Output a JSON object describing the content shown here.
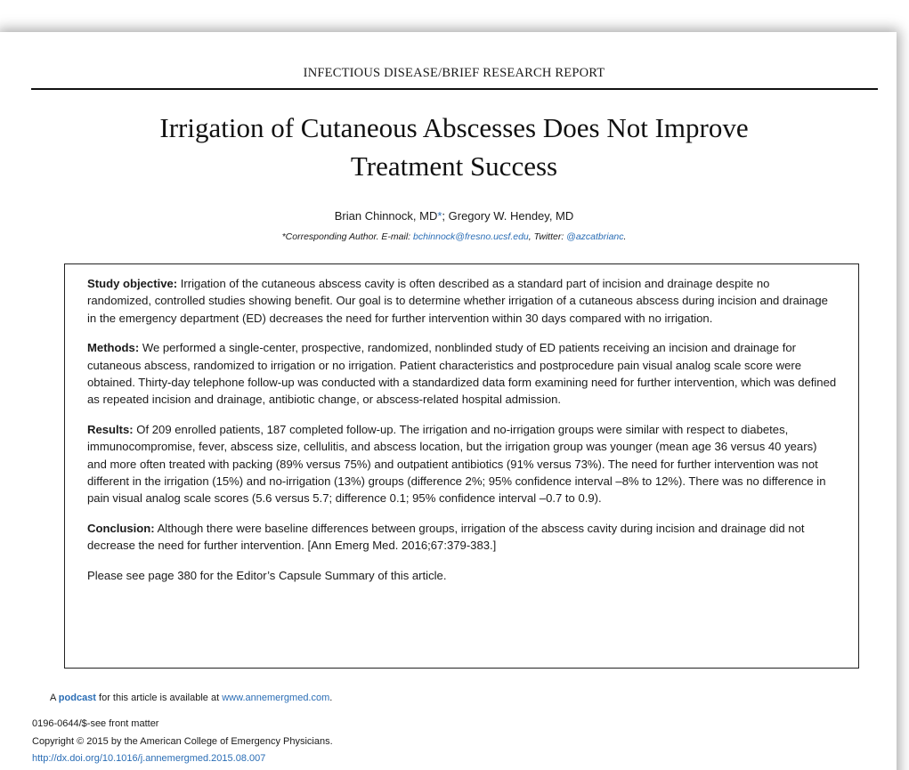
{
  "header": {
    "section": "INFECTIOUS DISEASE/BRIEF RESEARCH REPORT"
  },
  "title": [
    "Irrigation of Cutaneous Abscesses Does Not Improve",
    "Treatment Success"
  ],
  "authors": {
    "first": "Brian Chinnock, MD",
    "marker": "*",
    "rest": "; Gregory W. Hendey, MD"
  },
  "corresponding": {
    "prefix": "*Corresponding Author. E-mail: ",
    "email": "bchinnock@fresno.ucsf.edu",
    "middle": ", Twitter: ",
    "twitter": "@azcatbrianc",
    "end": "."
  },
  "abstract": {
    "sections": [
      {
        "label": "Study objective:",
        "text": " Irrigation of the cutaneous abscess cavity is often described as a standard part of incision and drainage despite no randomized, controlled studies showing benefit. Our goal is to determine whether irrigation of a cutaneous abscess during incision and drainage in the emergency department (ED) decreases the need for further intervention within 30 days compared with no irrigation."
      },
      {
        "label": "Methods:",
        "text": " We performed a single-center, prospective, randomized, nonblinded study of ED patients receiving an incision and drainage for cutaneous abscess, randomized to irrigation or no irrigation. Patient characteristics and postprocedure pain visual analog scale score were obtained. Thirty-day telephone follow-up was conducted with a standardized data form examining need for further intervention, which was defined as repeated incision and drainage, antibiotic change, or abscess-related hospital admission."
      },
      {
        "label": "Results:",
        "text": " Of 209 enrolled patients, 187 completed follow-up. The irrigation and no-irrigation groups were similar with respect to diabetes, immunocompromise, fever, abscess size, cellulitis, and abscess location, but the irrigation group was younger (mean age 36 versus 40 years) and more often treated with packing (89% versus 75%) and outpatient antibiotics (91% versus 73%). The need for further intervention was not different in the irrigation (15%) and no-irrigation (13%) groups (difference 2%; 95% confidence interval –8% to 12%). There was no difference in pain visual analog scale scores (5.6 versus 5.7; difference 0.1; 95% confidence interval –0.7 to 0.9)."
      },
      {
        "label": "Conclusion:",
        "text": " Although there were baseline differences between groups, irrigation of the abscess cavity during incision and drainage did not decrease the need for further intervention. [Ann Emerg Med. 2016;67:379-383.]"
      }
    ],
    "note": "Please see page 380 for the Editor’s Capsule Summary of this article."
  },
  "footer": {
    "podcast": {
      "prefix": "A ",
      "link": "podcast",
      "middle": " for this article is available at ",
      "url": "www.annemergmed.com",
      "end": "."
    },
    "front_matter": "0196-0644/$-see front matter",
    "copyright": "Copyright © 2015 by the American College of Emergency Physicians.",
    "doi": "http://dx.doi.org/10.1016/j.annemergmed.2015.08.007"
  }
}
